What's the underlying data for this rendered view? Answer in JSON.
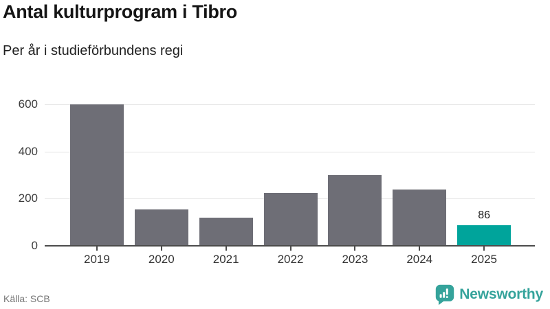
{
  "chart_data": {
    "type": "bar",
    "title": "Antal kulturprogram i Tibro",
    "subtitle": "Per år i studieförbundens regi",
    "categories": [
      "2019",
      "2020",
      "2021",
      "2022",
      "2023",
      "2024",
      "2025"
    ],
    "values": [
      600,
      155,
      120,
      225,
      300,
      240,
      86
    ],
    "highlight_index": 6,
    "bar_labels": {
      "6": "86"
    },
    "yticks": [
      0,
      200,
      400,
      600
    ],
    "ylim": [
      0,
      600
    ],
    "grid": "horizontal",
    "legend": "none"
  },
  "footer": {
    "source": "Källa: SCB",
    "brand": "Newsworthy"
  },
  "icons": {
    "brand_icon": "newsworthy-pin-barchart-icon"
  },
  "colors": {
    "bar": "#6e6e76",
    "highlight": "#00a49b",
    "grid": "#e4e4e4",
    "axis_line": "#4b4b4b",
    "axis_text": "#3c3c3c",
    "source_text": "#757575",
    "brand_teal": "#35a39b"
  }
}
